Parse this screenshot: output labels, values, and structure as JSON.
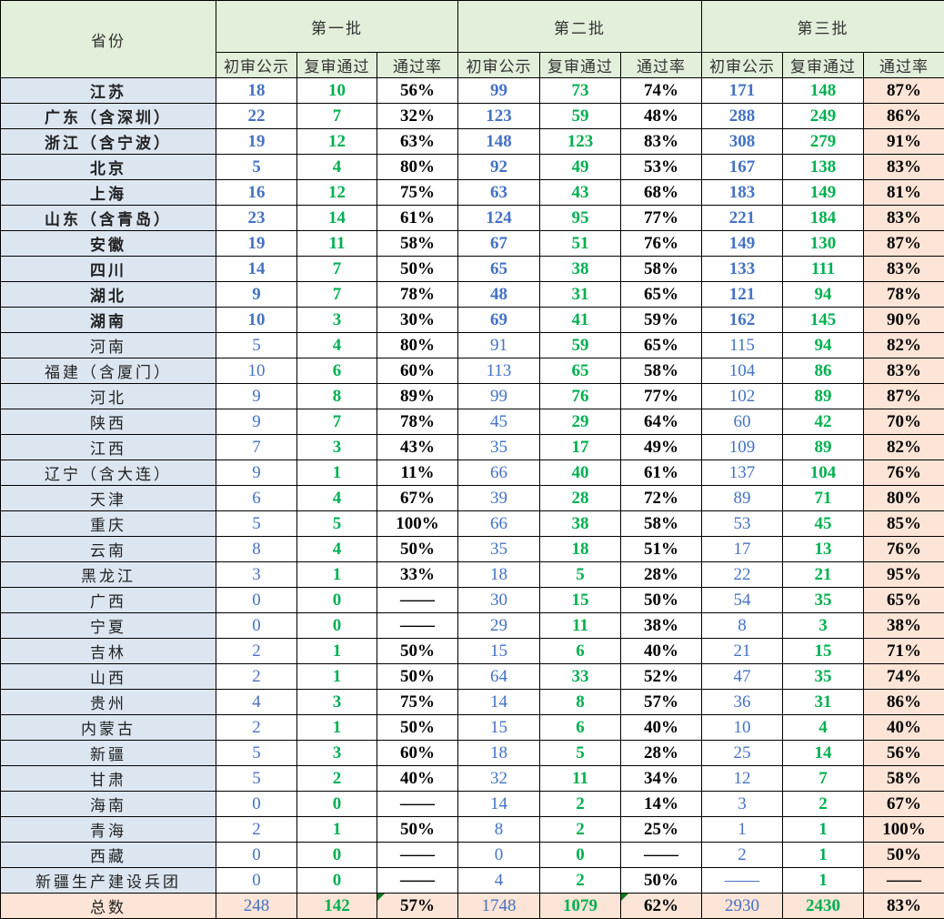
{
  "header": {
    "province": "省份",
    "batches": [
      "第一批",
      "第二批",
      "第三批"
    ],
    "sub": [
      "初审公示",
      "复审通过",
      "通过率"
    ]
  },
  "colors": {
    "initial": "#4472c4",
    "passed": "#00b050",
    "province_bg": "#dce6f1",
    "header_bg": "#e2efda",
    "highlight_bg": "#fce4d6"
  },
  "rows": [
    {
      "p": "江苏",
      "bold": true,
      "v": [
        "18",
        "10",
        "56%",
        "99",
        "73",
        "74%",
        "171",
        "148",
        "87%"
      ]
    },
    {
      "p": "广东（含深圳）",
      "bold": true,
      "v": [
        "22",
        "7",
        "32%",
        "123",
        "59",
        "48%",
        "288",
        "249",
        "86%"
      ]
    },
    {
      "p": "浙江（含宁波）",
      "bold": true,
      "v": [
        "19",
        "12",
        "63%",
        "148",
        "123",
        "83%",
        "308",
        "279",
        "91%"
      ]
    },
    {
      "p": "北京",
      "bold": true,
      "v": [
        "5",
        "4",
        "80%",
        "92",
        "49",
        "53%",
        "167",
        "138",
        "83%"
      ]
    },
    {
      "p": "上海",
      "bold": true,
      "v": [
        "16",
        "12",
        "75%",
        "63",
        "43",
        "68%",
        "183",
        "149",
        "81%"
      ]
    },
    {
      "p": "山东（含青岛）",
      "bold": true,
      "v": [
        "23",
        "14",
        "61%",
        "124",
        "95",
        "77%",
        "221",
        "184",
        "83%"
      ]
    },
    {
      "p": "安徽",
      "bold": true,
      "v": [
        "19",
        "11",
        "58%",
        "67",
        "51",
        "76%",
        "149",
        "130",
        "87%"
      ]
    },
    {
      "p": "四川",
      "bold": true,
      "v": [
        "14",
        "7",
        "50%",
        "65",
        "38",
        "58%",
        "133",
        "111",
        "83%"
      ]
    },
    {
      "p": "湖北",
      "bold": true,
      "v": [
        "9",
        "7",
        "78%",
        "48",
        "31",
        "65%",
        "121",
        "94",
        "78%"
      ]
    },
    {
      "p": "湖南",
      "bold": true,
      "v": [
        "10",
        "3",
        "30%",
        "69",
        "41",
        "59%",
        "162",
        "145",
        "90%"
      ]
    },
    {
      "p": "河南",
      "bold": false,
      "v": [
        "5",
        "4",
        "80%",
        "91",
        "59",
        "65%",
        "115",
        "94",
        "82%"
      ]
    },
    {
      "p": "福建（含厦门）",
      "bold": false,
      "v": [
        "10",
        "6",
        "60%",
        "113",
        "65",
        "58%",
        "104",
        "86",
        "83%"
      ]
    },
    {
      "p": "河北",
      "bold": false,
      "v": [
        "9",
        "8",
        "89%",
        "99",
        "76",
        "77%",
        "102",
        "89",
        "87%"
      ]
    },
    {
      "p": "陕西",
      "bold": false,
      "v": [
        "9",
        "7",
        "78%",
        "45",
        "29",
        "64%",
        "60",
        "42",
        "70%"
      ]
    },
    {
      "p": "江西",
      "bold": false,
      "v": [
        "7",
        "3",
        "43%",
        "35",
        "17",
        "49%",
        "109",
        "89",
        "82%"
      ]
    },
    {
      "p": "辽宁（含大连）",
      "bold": false,
      "v": [
        "9",
        "1",
        "11%",
        "66",
        "40",
        "61%",
        "137",
        "104",
        "76%"
      ]
    },
    {
      "p": "天津",
      "bold": false,
      "v": [
        "6",
        "4",
        "67%",
        "39",
        "28",
        "72%",
        "89",
        "71",
        "80%"
      ]
    },
    {
      "p": "重庆",
      "bold": false,
      "v": [
        "5",
        "5",
        "100%",
        "66",
        "38",
        "58%",
        "53",
        "45",
        "85%"
      ]
    },
    {
      "p": "云南",
      "bold": false,
      "v": [
        "8",
        "4",
        "50%",
        "35",
        "18",
        "51%",
        "17",
        "13",
        "76%"
      ]
    },
    {
      "p": "黑龙江",
      "bold": false,
      "v": [
        "3",
        "1",
        "33%",
        "18",
        "5",
        "28%",
        "22",
        "21",
        "95%"
      ]
    },
    {
      "p": "广西",
      "bold": false,
      "v": [
        "0",
        "0",
        "——",
        "30",
        "15",
        "50%",
        "54",
        "35",
        "65%"
      ]
    },
    {
      "p": "宁夏",
      "bold": false,
      "v": [
        "0",
        "0",
        "——",
        "29",
        "11",
        "38%",
        "8",
        "3",
        "38%"
      ]
    },
    {
      "p": "吉林",
      "bold": false,
      "v": [
        "2",
        "1",
        "50%",
        "15",
        "6",
        "40%",
        "21",
        "15",
        "71%"
      ]
    },
    {
      "p": "山西",
      "bold": false,
      "v": [
        "2",
        "1",
        "50%",
        "64",
        "33",
        "52%",
        "47",
        "35",
        "74%"
      ]
    },
    {
      "p": "贵州",
      "bold": false,
      "v": [
        "4",
        "3",
        "75%",
        "14",
        "8",
        "57%",
        "36",
        "31",
        "86%"
      ]
    },
    {
      "p": "内蒙古",
      "bold": false,
      "v": [
        "2",
        "1",
        "50%",
        "15",
        "6",
        "40%",
        "10",
        "4",
        "40%"
      ]
    },
    {
      "p": "新疆",
      "bold": false,
      "v": [
        "5",
        "3",
        "60%",
        "18",
        "5",
        "28%",
        "25",
        "14",
        "56%"
      ]
    },
    {
      "p": "甘肃",
      "bold": false,
      "v": [
        "5",
        "2",
        "40%",
        "32",
        "11",
        "34%",
        "12",
        "7",
        "58%"
      ]
    },
    {
      "p": "海南",
      "bold": false,
      "v": [
        "0",
        "0",
        "——",
        "14",
        "2",
        "14%",
        "3",
        "2",
        "67%"
      ]
    },
    {
      "p": "青海",
      "bold": false,
      "v": [
        "2",
        "1",
        "50%",
        "8",
        "2",
        "25%",
        "1",
        "1",
        "100%"
      ]
    },
    {
      "p": "西藏",
      "bold": false,
      "v": [
        "0",
        "0",
        "——",
        "0",
        "0",
        "——",
        "2",
        "1",
        "50%"
      ]
    },
    {
      "p": "新疆生产建设兵团",
      "bold": false,
      "v": [
        "0",
        "0",
        "——",
        "4",
        "2",
        "50%",
        "——",
        "1",
        "——"
      ]
    }
  ],
  "total": {
    "p": "总数",
    "v": [
      "248",
      "142",
      "57%",
      "1748",
      "1079",
      "62%",
      "2930",
      "2430",
      "83%"
    ]
  }
}
